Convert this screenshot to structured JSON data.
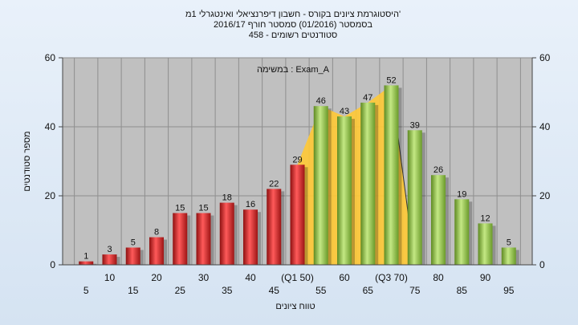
{
  "chart_data": {
    "type": "bar",
    "title_lines": [
      "היסטוגרמת ציונים בקורס - חשבון דיפרנציאלי ואינטגרלי 1מ'",
      "בסמסטר  (01/2016)  סמסטר חורף 2016/17",
      "סטודנטים רשומים - 458"
    ],
    "annotation": "במשימה : Exam_A",
    "xlabel": "טווח ציונים",
    "ylabel": "מספר סטודנטים",
    "ylim": [
      0,
      60
    ],
    "yticks": [
      0,
      20,
      40,
      60
    ],
    "grid": true,
    "categories": [
      "5",
      "10",
      "15",
      "20",
      "25",
      "30",
      "35",
      "40",
      "45",
      "(Q1 50)",
      "55",
      "60",
      "65",
      "(Q3 70)",
      "75",
      "80",
      "85",
      "90",
      "95"
    ],
    "values": [
      1,
      3,
      5,
      8,
      15,
      15,
      18,
      16,
      22,
      29,
      46,
      43,
      47,
      52,
      39,
      26,
      19,
      12,
      5
    ],
    "colors": {
      "below_q1": "#d42a2a",
      "above_q1": "#8ec04a",
      "interquartile_area": "#ffc935",
      "plot_bg": "#c0c0c0"
    }
  }
}
